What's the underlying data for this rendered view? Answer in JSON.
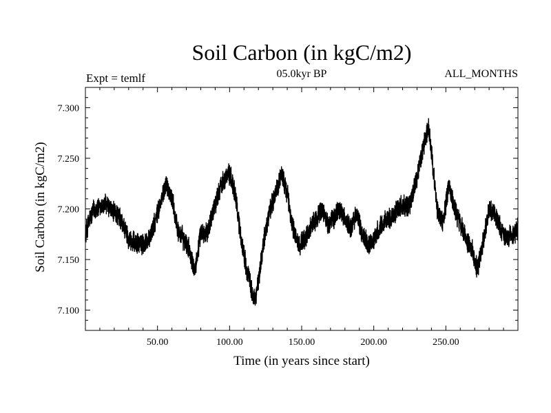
{
  "chart_data": {
    "type": "line",
    "title": "Soil Carbon (in kgC/m2)",
    "subtitle_left": "Expt = temlf",
    "subtitle_center": "05.0kyr BP",
    "subtitle_right": "ALL_MONTHS",
    "xlabel": "Time (in years since start)",
    "ylabel": "Soil Carbon (in kgC/m2)",
    "xlim": [
      0,
      300
    ],
    "ylim": [
      7.08,
      7.32
    ],
    "xticks": [
      50,
      100,
      150,
      200,
      250
    ],
    "xtick_labels": [
      "50.00",
      "100.00",
      "150.00",
      "200.00",
      "250.00"
    ],
    "yticks": [
      7.1,
      7.15,
      7.2,
      7.25,
      7.3
    ],
    "ytick_labels": [
      "7.100",
      "7.150",
      "7.200",
      "7.250",
      "7.300"
    ],
    "grid": false,
    "series": [
      {
        "name": "Soil Carbon",
        "color": "#000000",
        "noise_amplitude": 0.012,
        "x": [
          0,
          3,
          6,
          10,
          14,
          18,
          22,
          26,
          30,
          35,
          40,
          44,
          48,
          52,
          56,
          60,
          64,
          68,
          72,
          76,
          80,
          84,
          88,
          92,
          96,
          100,
          104,
          108,
          112,
          116,
          118,
          120,
          124,
          128,
          132,
          136,
          140,
          144,
          148,
          152,
          156,
          160,
          164,
          168,
          172,
          176,
          180,
          184,
          188,
          192,
          196,
          200,
          204,
          208,
          212,
          216,
          220,
          224,
          228,
          232,
          236,
          238,
          240,
          244,
          248,
          252,
          256,
          260,
          264,
          268,
          272,
          276,
          280,
          284,
          288,
          292,
          296,
          300
        ],
        "y": [
          7.175,
          7.19,
          7.2,
          7.2,
          7.205,
          7.198,
          7.195,
          7.185,
          7.17,
          7.165,
          7.165,
          7.17,
          7.185,
          7.205,
          7.225,
          7.21,
          7.18,
          7.17,
          7.16,
          7.14,
          7.175,
          7.175,
          7.195,
          7.215,
          7.23,
          7.235,
          7.215,
          7.17,
          7.14,
          7.115,
          7.11,
          7.13,
          7.17,
          7.2,
          7.215,
          7.235,
          7.215,
          7.18,
          7.165,
          7.17,
          7.18,
          7.19,
          7.2,
          7.185,
          7.19,
          7.2,
          7.19,
          7.18,
          7.195,
          7.175,
          7.165,
          7.17,
          7.18,
          7.19,
          7.19,
          7.2,
          7.205,
          7.2,
          7.22,
          7.245,
          7.27,
          7.28,
          7.255,
          7.2,
          7.185,
          7.225,
          7.2,
          7.185,
          7.17,
          7.16,
          7.14,
          7.17,
          7.2,
          7.195,
          7.18,
          7.17,
          7.175,
          7.18
        ]
      }
    ]
  }
}
